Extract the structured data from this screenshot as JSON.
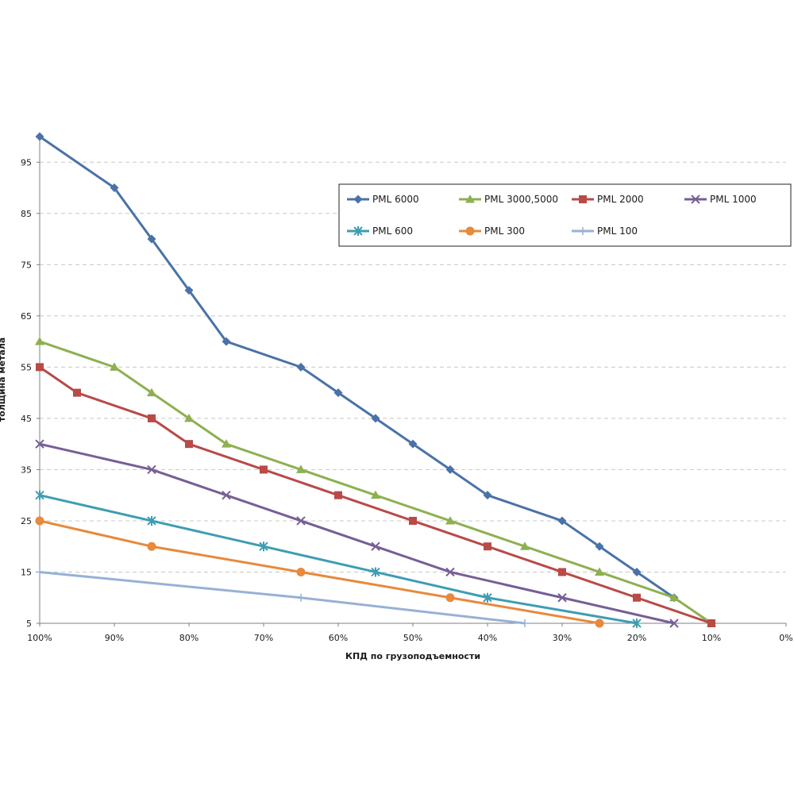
{
  "chart_data": {
    "type": "line",
    "title": "",
    "xlabel": "КПД по грузоподъемности",
    "ylabel": "толщина метала",
    "x": [
      100,
      95,
      90,
      85,
      80,
      75,
      70,
      65,
      60,
      55,
      50,
      45,
      40,
      35,
      30,
      25,
      20,
      15,
      10
    ],
    "x_ticks": [
      100,
      90,
      80,
      70,
      60,
      50,
      40,
      30,
      20,
      10,
      0
    ],
    "x_tick_labels": [
      "100%",
      "90%",
      "80%",
      "70%",
      "60%",
      "50%",
      "40%",
      "30%",
      "20%",
      "10%",
      "0%"
    ],
    "xlim": [
      100,
      0
    ],
    "y_ticks": [
      5,
      15,
      25,
      35,
      45,
      55,
      65,
      75,
      85,
      95
    ],
    "y_tick_labels": [
      "5",
      "15",
      "25",
      "35",
      "45",
      "55",
      "65",
      "75",
      "85",
      "95"
    ],
    "ylim": [
      5,
      100
    ],
    "grid": "horizontal-dashed",
    "legend_position": "top-right",
    "series": [
      {
        "name": "PML 6000",
        "color": "#4a72a8",
        "marker": "diamond",
        "points": [
          [
            100,
            100
          ],
          [
            90,
            90
          ],
          [
            85,
            80
          ],
          [
            80,
            70
          ],
          [
            75,
            60
          ],
          [
            65,
            55
          ],
          [
            60,
            50
          ],
          [
            55,
            45
          ],
          [
            50,
            40
          ],
          [
            45,
            35
          ],
          [
            40,
            30
          ],
          [
            30,
            25
          ],
          [
            25,
            20
          ],
          [
            20,
            15
          ],
          [
            15,
            10
          ]
        ]
      },
      {
        "name": "PML 3000,5000",
        "color": "#8eb051",
        "marker": "triangle",
        "points": [
          [
            100,
            60
          ],
          [
            90,
            55
          ],
          [
            85,
            50
          ],
          [
            80,
            45
          ],
          [
            75,
            40
          ],
          [
            65,
            35
          ],
          [
            55,
            30
          ],
          [
            45,
            25
          ],
          [
            35,
            20
          ],
          [
            25,
            15
          ],
          [
            15,
            10
          ],
          [
            10,
            5
          ]
        ]
      },
      {
        "name": "PML 2000",
        "color": "#b84a48",
        "marker": "square",
        "points": [
          [
            100,
            55
          ],
          [
            95,
            50
          ],
          [
            85,
            45
          ],
          [
            80,
            40
          ],
          [
            70,
            35
          ],
          [
            60,
            30
          ],
          [
            50,
            25
          ],
          [
            40,
            20
          ],
          [
            30,
            15
          ],
          [
            20,
            10
          ],
          [
            10,
            5
          ]
        ]
      },
      {
        "name": "PML 1000",
        "color": "#775e96",
        "marker": "x",
        "points": [
          [
            100,
            40
          ],
          [
            85,
            35
          ],
          [
            75,
            30
          ],
          [
            65,
            25
          ],
          [
            55,
            20
          ],
          [
            45,
            15
          ],
          [
            30,
            10
          ],
          [
            15,
            5
          ]
        ]
      },
      {
        "name": "PML 600",
        "color": "#3e9db3",
        "marker": "star",
        "points": [
          [
            100,
            30
          ],
          [
            85,
            25
          ],
          [
            70,
            20
          ],
          [
            55,
            15
          ],
          [
            40,
            10
          ],
          [
            20,
            5
          ]
        ]
      },
      {
        "name": "PML 300",
        "color": "#e8893b",
        "marker": "circle",
        "points": [
          [
            100,
            25
          ],
          [
            85,
            20
          ],
          [
            65,
            15
          ],
          [
            45,
            10
          ],
          [
            25,
            5
          ]
        ]
      },
      {
        "name": "PML 100",
        "color": "#97b1d6",
        "marker": "plus",
        "points": [
          [
            100,
            15
          ],
          [
            65,
            10
          ],
          [
            35,
            5
          ]
        ]
      }
    ]
  }
}
